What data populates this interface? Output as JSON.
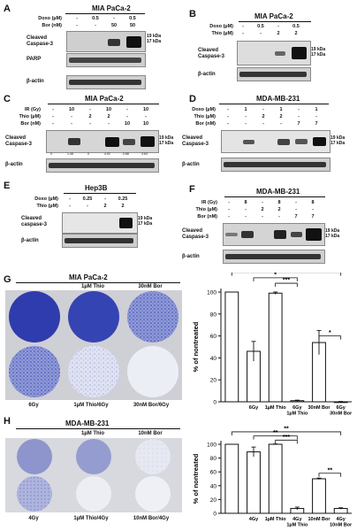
{
  "panels": {
    "A": {
      "label": "A",
      "title": "MIA PaCa-2",
      "rows": [
        {
          "name": "Doxo (µM)",
          "vals": [
            "-",
            "0.5",
            "-",
            "0.5"
          ]
        },
        {
          "name": "Bor (nM)",
          "vals": [
            "-",
            "-",
            "50",
            "50"
          ]
        }
      ],
      "blots": [
        "Cleaved\nCaspase-3",
        "PARP",
        "β-actin"
      ],
      "kda": [
        "19 kDa",
        "17 kDa"
      ]
    },
    "B": {
      "label": "B",
      "title": "MIA PaCa-2",
      "rows": [
        {
          "name": "Doxo (µM)",
          "vals": [
            "-",
            "0.5",
            "-",
            "0.5"
          ]
        },
        {
          "name": "Thio (µM)",
          "vals": [
            "-",
            "-",
            "2",
            "2"
          ]
        }
      ],
      "blots": [
        "Cleaved\nCaspase-3",
        "β-actin"
      ],
      "kda": [
        "19 kDa",
        "17 kDa"
      ]
    },
    "C": {
      "label": "C",
      "title": "MIA PaCa-2",
      "rows": [
        {
          "name": "IR (Gy)",
          "vals": [
            "-",
            "10",
            "-",
            "10",
            "-",
            "10"
          ]
        },
        {
          "name": "Thio (µM)",
          "vals": [
            "-",
            "-",
            "2",
            "2",
            "-",
            "-"
          ]
        },
        {
          "name": "Bor (nM)",
          "vals": [
            "-",
            "-",
            "-",
            "-",
            "10",
            "10"
          ]
        }
      ],
      "blots": [
        "Cleaved\nCaspase-3",
        "β-actin"
      ],
      "kda": [
        "19 kDa",
        "17 kDa"
      ],
      "quant": [
        "0",
        "1.45",
        "0",
        "4.92",
        "0.88",
        "3.63"
      ]
    },
    "D": {
      "label": "D",
      "title": "MDA-MB-231",
      "rows": [
        {
          "name": "Doxo (µM)",
          "vals": [
            "-",
            "1",
            "-",
            "1",
            "-",
            "1"
          ]
        },
        {
          "name": "Thio (µM)",
          "vals": [
            "-",
            "-",
            "2",
            "2",
            "-",
            "-"
          ]
        },
        {
          "name": "Bor (nM)",
          "vals": [
            "-",
            "-",
            "-",
            "-",
            "7",
            "7"
          ]
        }
      ],
      "blots": [
        "Cleaved\nCaspase-3",
        "β-actin"
      ],
      "kda": [
        "19 kDa",
        "17 kDa"
      ]
    },
    "E": {
      "label": "E",
      "title": "Hep3B",
      "rows": [
        {
          "name": "Doxo (µM)",
          "vals": [
            "-",
            "0.25",
            "-",
            "0.25"
          ]
        },
        {
          "name": "Thio (µM)",
          "vals": [
            "-",
            "-",
            "2",
            "2"
          ]
        }
      ],
      "blots": [
        "Cleaved\ncaspase-3",
        "β-actin"
      ],
      "kda": [
        "19 kDa",
        "17 kDa"
      ]
    },
    "F": {
      "label": "F",
      "title": "MDA-MB-231",
      "rows": [
        {
          "name": "IR (Gy)",
          "vals": [
            "-",
            "8",
            "-",
            "8",
            "-",
            "8"
          ]
        },
        {
          "name": "Thio (µM)",
          "vals": [
            "-",
            "-",
            "2",
            "2",
            "-",
            "-"
          ]
        },
        {
          "name": "Bor (nM)",
          "vals": [
            "-",
            "-",
            "-",
            "-",
            "7",
            "7"
          ]
        }
      ],
      "blots": [
        "Cleaved\nCaspase-3",
        "β-actin"
      ],
      "kda": [
        "19 kDa",
        "17 kDa"
      ]
    },
    "G": {
      "label": "G",
      "title": "MIA PaCa-2",
      "wells_top": [
        "",
        "1µM Thio",
        "30nM Bor"
      ],
      "wells_bottom": [
        "6Gy",
        "1µM Thio/6Gy",
        "30nM Bor/6Gy"
      ]
    },
    "H": {
      "label": "H",
      "title": "MDA-MB-231",
      "wells_top": [
        "",
        "1µM Thio",
        "10nM Bor"
      ],
      "wells_bottom": [
        "4Gy",
        "1µM Thio/4Gy",
        "10nM Bor/4Gy"
      ]
    }
  },
  "chart_data": [
    {
      "type": "bar",
      "ylabel": "% of nontreated",
      "ylim": [
        0,
        100
      ],
      "yticks": [
        "0",
        "20",
        "40",
        "60",
        "80",
        "100"
      ],
      "categories": [
        "",
        "6Gy",
        "1µM Thio",
        "6Gy\n1µM Thio",
        "30nM Bor",
        "6Gy\n30nM Bor"
      ],
      "values": [
        100,
        46,
        99,
        1,
        54,
        0
      ],
      "errors": [
        0,
        9,
        1,
        0.5,
        11,
        0.3
      ],
      "significance": [
        "*",
        "***",
        "*",
        "*"
      ]
    },
    {
      "type": "bar",
      "ylabel": "% of nontreated",
      "ylim": [
        0,
        100
      ],
      "yticks": [
        "0",
        "20",
        "40",
        "60",
        "80",
        "100"
      ],
      "categories": [
        "",
        "4Gy",
        "1µM Thio",
        "4Gy\n1µM Thio",
        "10nM Bor",
        "4Gy\n10nM Bor"
      ],
      "values": [
        100,
        89,
        100,
        7,
        50,
        7
      ],
      "errors": [
        0,
        7,
        0.5,
        2,
        1,
        1
      ],
      "significance": [
        "**",
        "***",
        "**",
        "**"
      ]
    }
  ]
}
